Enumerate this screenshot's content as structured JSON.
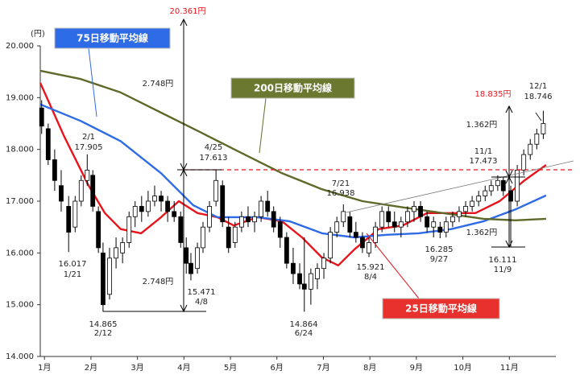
{
  "chart_data": {
    "type": "candlestick",
    "y_unit_label": "(円)",
    "up_color": "#ffffff",
    "down_color": "#000000",
    "xlim": [
      0.91,
      12.0
    ],
    "xticks": [
      {
        "value": 1,
        "label": "1月"
      },
      {
        "value": 2,
        "label": "2月"
      },
      {
        "value": 3,
        "label": "3月"
      },
      {
        "value": 4,
        "label": "4月"
      },
      {
        "value": 5,
        "label": "5月"
      },
      {
        "value": 6,
        "label": "6月"
      },
      {
        "value": 7,
        "label": "7月"
      },
      {
        "value": 8,
        "label": "8月"
      },
      {
        "value": 9,
        "label": "9月"
      },
      {
        "value": 10,
        "label": "10月"
      },
      {
        "value": 11,
        "label": "11月"
      }
    ],
    "ylim": [
      14000,
      20000
    ],
    "yticks": [
      {
        "value": 14000,
        "label": "14.000"
      },
      {
        "value": 15000,
        "label": "15.000"
      },
      {
        "value": 16000,
        "label": "16.000"
      },
      {
        "value": 17000,
        "label": "17.000"
      },
      {
        "value": 18000,
        "label": "18.000"
      },
      {
        "value": 19000,
        "label": "19.000"
      },
      {
        "value": 20000,
        "label": "20.000"
      }
    ],
    "x": [
      0.94,
      1.08,
      1.22,
      1.36,
      1.52,
      1.66,
      1.79,
      1.92,
      2.04,
      2.16,
      2.26,
      2.4,
      2.54,
      2.68,
      2.82,
      2.95,
      3.09,
      3.23,
      3.37,
      3.51,
      3.65,
      3.79,
      3.93,
      4.05,
      4.15,
      4.29,
      4.41,
      4.55,
      4.69,
      4.83,
      4.96,
      5.1,
      5.24,
      5.38,
      5.52,
      5.66,
      5.8,
      5.93,
      6.07,
      6.21,
      6.35,
      6.49,
      6.59,
      6.73,
      6.87,
      7.01,
      7.15,
      7.29,
      7.43,
      7.57,
      7.7,
      7.84,
      7.98,
      8.12,
      8.26,
      8.4,
      8.53,
      8.67,
      8.81,
      8.95,
      9.09,
      9.23,
      9.37,
      9.51,
      9.64,
      9.78,
      9.92,
      10.06,
      10.2,
      10.34,
      10.48,
      10.61,
      10.75,
      10.87,
      11.03,
      11.17,
      11.31,
      11.45,
      11.59,
      11.73
    ],
    "open": [
      18800,
      18400,
      17800,
      17300,
      16900,
      16500,
      17000,
      17400,
      17500,
      16800,
      16000,
      15200,
      15900,
      16000,
      16200,
      16700,
      16900,
      16800,
      17000,
      17100,
      17000,
      16800,
      16700,
      16100,
      15800,
      15700,
      16100,
      16500,
      17000,
      17300,
      16500,
      16200,
      16500,
      16700,
      16600,
      16700,
      17000,
      16800,
      16600,
      16300,
      15800,
      15600,
      15400,
      15300,
      15500,
      15700,
      15900,
      16400,
      16600,
      16700,
      16400,
      16300,
      16000,
      16200,
      16500,
      16800,
      16600,
      16500,
      16600,
      16800,
      16900,
      16700,
      16500,
      16500,
      16400,
      16600,
      16700,
      16800,
      16900,
      17000,
      17100,
      17200,
      17300,
      17400,
      17200,
      17000,
      17600,
      17900,
      18100,
      18300
    ],
    "high": [
      18950,
      18500,
      18000,
      17600,
      17100,
      17100,
      17500,
      17905,
      17600,
      16900,
      16200,
      16100,
      16300,
      16300,
      16800,
      17000,
      17100,
      17200,
      17300,
      17200,
      17100,
      17000,
      16800,
      16300,
      16000,
      16200,
      16600,
      17000,
      17613,
      17400,
      16700,
      16600,
      16800,
      16900,
      16800,
      17100,
      17200,
      16900,
      16700,
      16400,
      16100,
      15800,
      16300,
      15700,
      15800,
      16000,
      16500,
      16700,
      16938,
      16800,
      16600,
      16400,
      16300,
      16600,
      16900,
      16900,
      16800,
      16700,
      16900,
      17000,
      17000,
      16800,
      16700,
      16600,
      16700,
      16800,
      16900,
      17000,
      17100,
      17200,
      17300,
      17400,
      17500,
      17473,
      17300,
      17700,
      18000,
      18200,
      18400,
      18746
    ],
    "low": [
      18300,
      17700,
      17200,
      16800,
      16017,
      16400,
      16900,
      17300,
      16800,
      16000,
      14865,
      15100,
      15700,
      15800,
      16100,
      16500,
      16600,
      16700,
      16900,
      16800,
      16600,
      16600,
      16100,
      15600,
      15471,
      15600,
      16000,
      16400,
      16900,
      16500,
      16000,
      16100,
      16400,
      16500,
      16400,
      16600,
      16700,
      16400,
      16100,
      15700,
      15400,
      15300,
      14864,
      15000,
      15300,
      15500,
      15800,
      16300,
      16500,
      16300,
      16200,
      16000,
      15921,
      16100,
      16400,
      16500,
      16400,
      16300,
      16500,
      16600,
      16600,
      16400,
      16300,
      16285,
      16300,
      16500,
      16600,
      16700,
      16800,
      16900,
      17000,
      17100,
      17200,
      17100,
      16111,
      16900,
      17500,
      17800,
      18000,
      18200
    ],
    "close": [
      18450,
      17800,
      17400,
      17000,
      16400,
      17000,
      17400,
      17600,
      16900,
      16100,
      15000,
      15900,
      16100,
      16200,
      16700,
      16900,
      16800,
      17000,
      17100,
      17000,
      16800,
      16700,
      16200,
      15800,
      15600,
      16100,
      16500,
      16900,
      17400,
      16600,
      16100,
      16500,
      16700,
      16600,
      16700,
      17000,
      16800,
      16500,
      16300,
      15800,
      15600,
      15400,
      15300,
      15600,
      15700,
      15900,
      16400,
      16600,
      16800,
      16400,
      16300,
      16100,
      16200,
      16500,
      16800,
      16600,
      16500,
      16600,
      16800,
      16900,
      16700,
      16500,
      16600,
      16400,
      16600,
      16700,
      16800,
      16900,
      17000,
      17100,
      17200,
      17300,
      17400,
      17200,
      17000,
      17600,
      17900,
      18100,
      18300,
      18500
    ],
    "series": [
      {
        "name": "25日移動平均線",
        "color": "#e8141c",
        "x": [
          0.91,
          1.43,
          1.95,
          2.3,
          2.64,
          3.08,
          3.51,
          3.89,
          4.29,
          4.72,
          5.07,
          5.59,
          6.11,
          6.54,
          6.97,
          7.32,
          7.67,
          8.19,
          8.71,
          9.23,
          9.75,
          10.27,
          10.79,
          11.31,
          11.79
        ],
        "values": [
          19285,
          18240,
          17300,
          16770,
          16460,
          16380,
          16690,
          17000,
          16770,
          16690,
          16530,
          16690,
          16610,
          16300,
          15910,
          15760,
          16070,
          16460,
          16530,
          16770,
          16770,
          16770,
          17000,
          17390,
          17700
        ]
      },
      {
        "name": "75日移動平均線",
        "color": "#2e6be6",
        "x": [
          0.91,
          1.78,
          2.64,
          3.51,
          4.2,
          4.72,
          5.59,
          6.28,
          6.97,
          7.67,
          8.36,
          9.05,
          9.75,
          10.44,
          11.13,
          11.79
        ],
        "values": [
          18870,
          18550,
          18160,
          17540,
          16920,
          16690,
          16690,
          16610,
          16380,
          16300,
          16350,
          16380,
          16460,
          16610,
          16840,
          17110
        ]
      },
      {
        "name": "200日移動平均線",
        "color": "#5f6a2a",
        "x": [
          0.91,
          1.78,
          2.64,
          3.51,
          4.38,
          5.24,
          6.11,
          6.97,
          7.84,
          8.71,
          9.57,
          10.44,
          11.13,
          11.79
        ],
        "values": [
          19520,
          19360,
          19100,
          18710,
          18320,
          17930,
          17540,
          17230,
          17000,
          16880,
          16770,
          16660,
          16630,
          16660
        ]
      }
    ],
    "annotations": [
      "20.361円",
      "2.748円",
      "2.748円",
      "18.835円",
      "1.362円",
      "1.362円",
      "12/1",
      "18.746",
      "2/1",
      "17.905",
      "4/25",
      "17.613",
      "7/21",
      "16.938",
      "11/1",
      "17.473",
      "16.017",
      "1/21",
      "14.865",
      "2/12",
      "15.471",
      "4/8",
      "14.864",
      "6/24",
      "15.921",
      "8/4",
      "16.285",
      "9/27",
      "16.111",
      "11/9"
    ]
  }
}
